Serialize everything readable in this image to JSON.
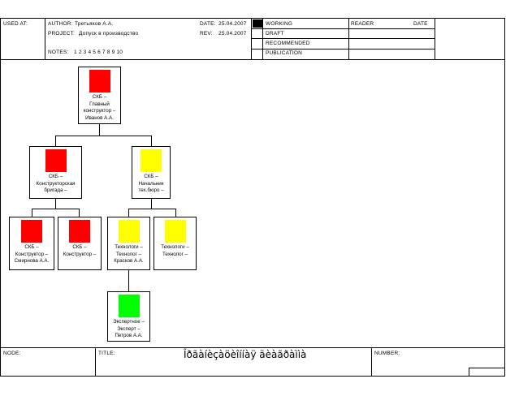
{
  "header": {
    "used_at_label": "USED AT:",
    "author_label": "AUTHOR:",
    "author_value": "Третьяков А.А.",
    "project_label": "PROJECT:",
    "project_value": "Допуск в производство",
    "notes_label": "NOTES:",
    "notes_values": "1  2  3  4  5  6  7  8  9  10",
    "date_label": "DATE:",
    "date_value": "25.04.2007",
    "rev_label": "REV:",
    "rev_value": "25.04.2007",
    "status_options": [
      "WORKING",
      "DRAFT",
      "RECOMMENDED",
      "PUBLICATION"
    ],
    "status_selected": "WORKING",
    "reader_label": "READER",
    "reader_date_label": "DATE"
  },
  "footer": {
    "node_label": "NODE:",
    "title_label": "TITLE:",
    "title_value": "Îðãàíèçàöèîííàÿ äèàãðàììà",
    "number_label": "NUMBER:"
  },
  "colors": {
    "red": "#ff0000",
    "yellow": "#ffff00",
    "green": "#00ff00"
  },
  "nodes": [
    {
      "id": "chief",
      "label": "СКБ –\nГлавный\nконструктор –\nИванов А.А.",
      "color": "red"
    },
    {
      "id": "brigade",
      "label": "СКБ –\nКонструкторская\nбригада –",
      "color": "red"
    },
    {
      "id": "techburo",
      "label": "СКБ –\nНачальник\nтех.бюро –",
      "color": "yellow"
    },
    {
      "id": "designer1",
      "label": "СКБ –\nКонструктор –\nСмирнова А.А.",
      "color": "red"
    },
    {
      "id": "designer2",
      "label": "СКБ –\nКонструктор –",
      "color": "red"
    },
    {
      "id": "tech1",
      "label": "Технологи –\nТехнолог –\nКрасков А.А.",
      "color": "yellow"
    },
    {
      "id": "tech2",
      "label": "Технологи –\nТехнолог –",
      "color": "yellow"
    },
    {
      "id": "expert",
      "label": "Экспертное –\nЭксперт –\nПетров А.А.",
      "color": "green"
    }
  ]
}
